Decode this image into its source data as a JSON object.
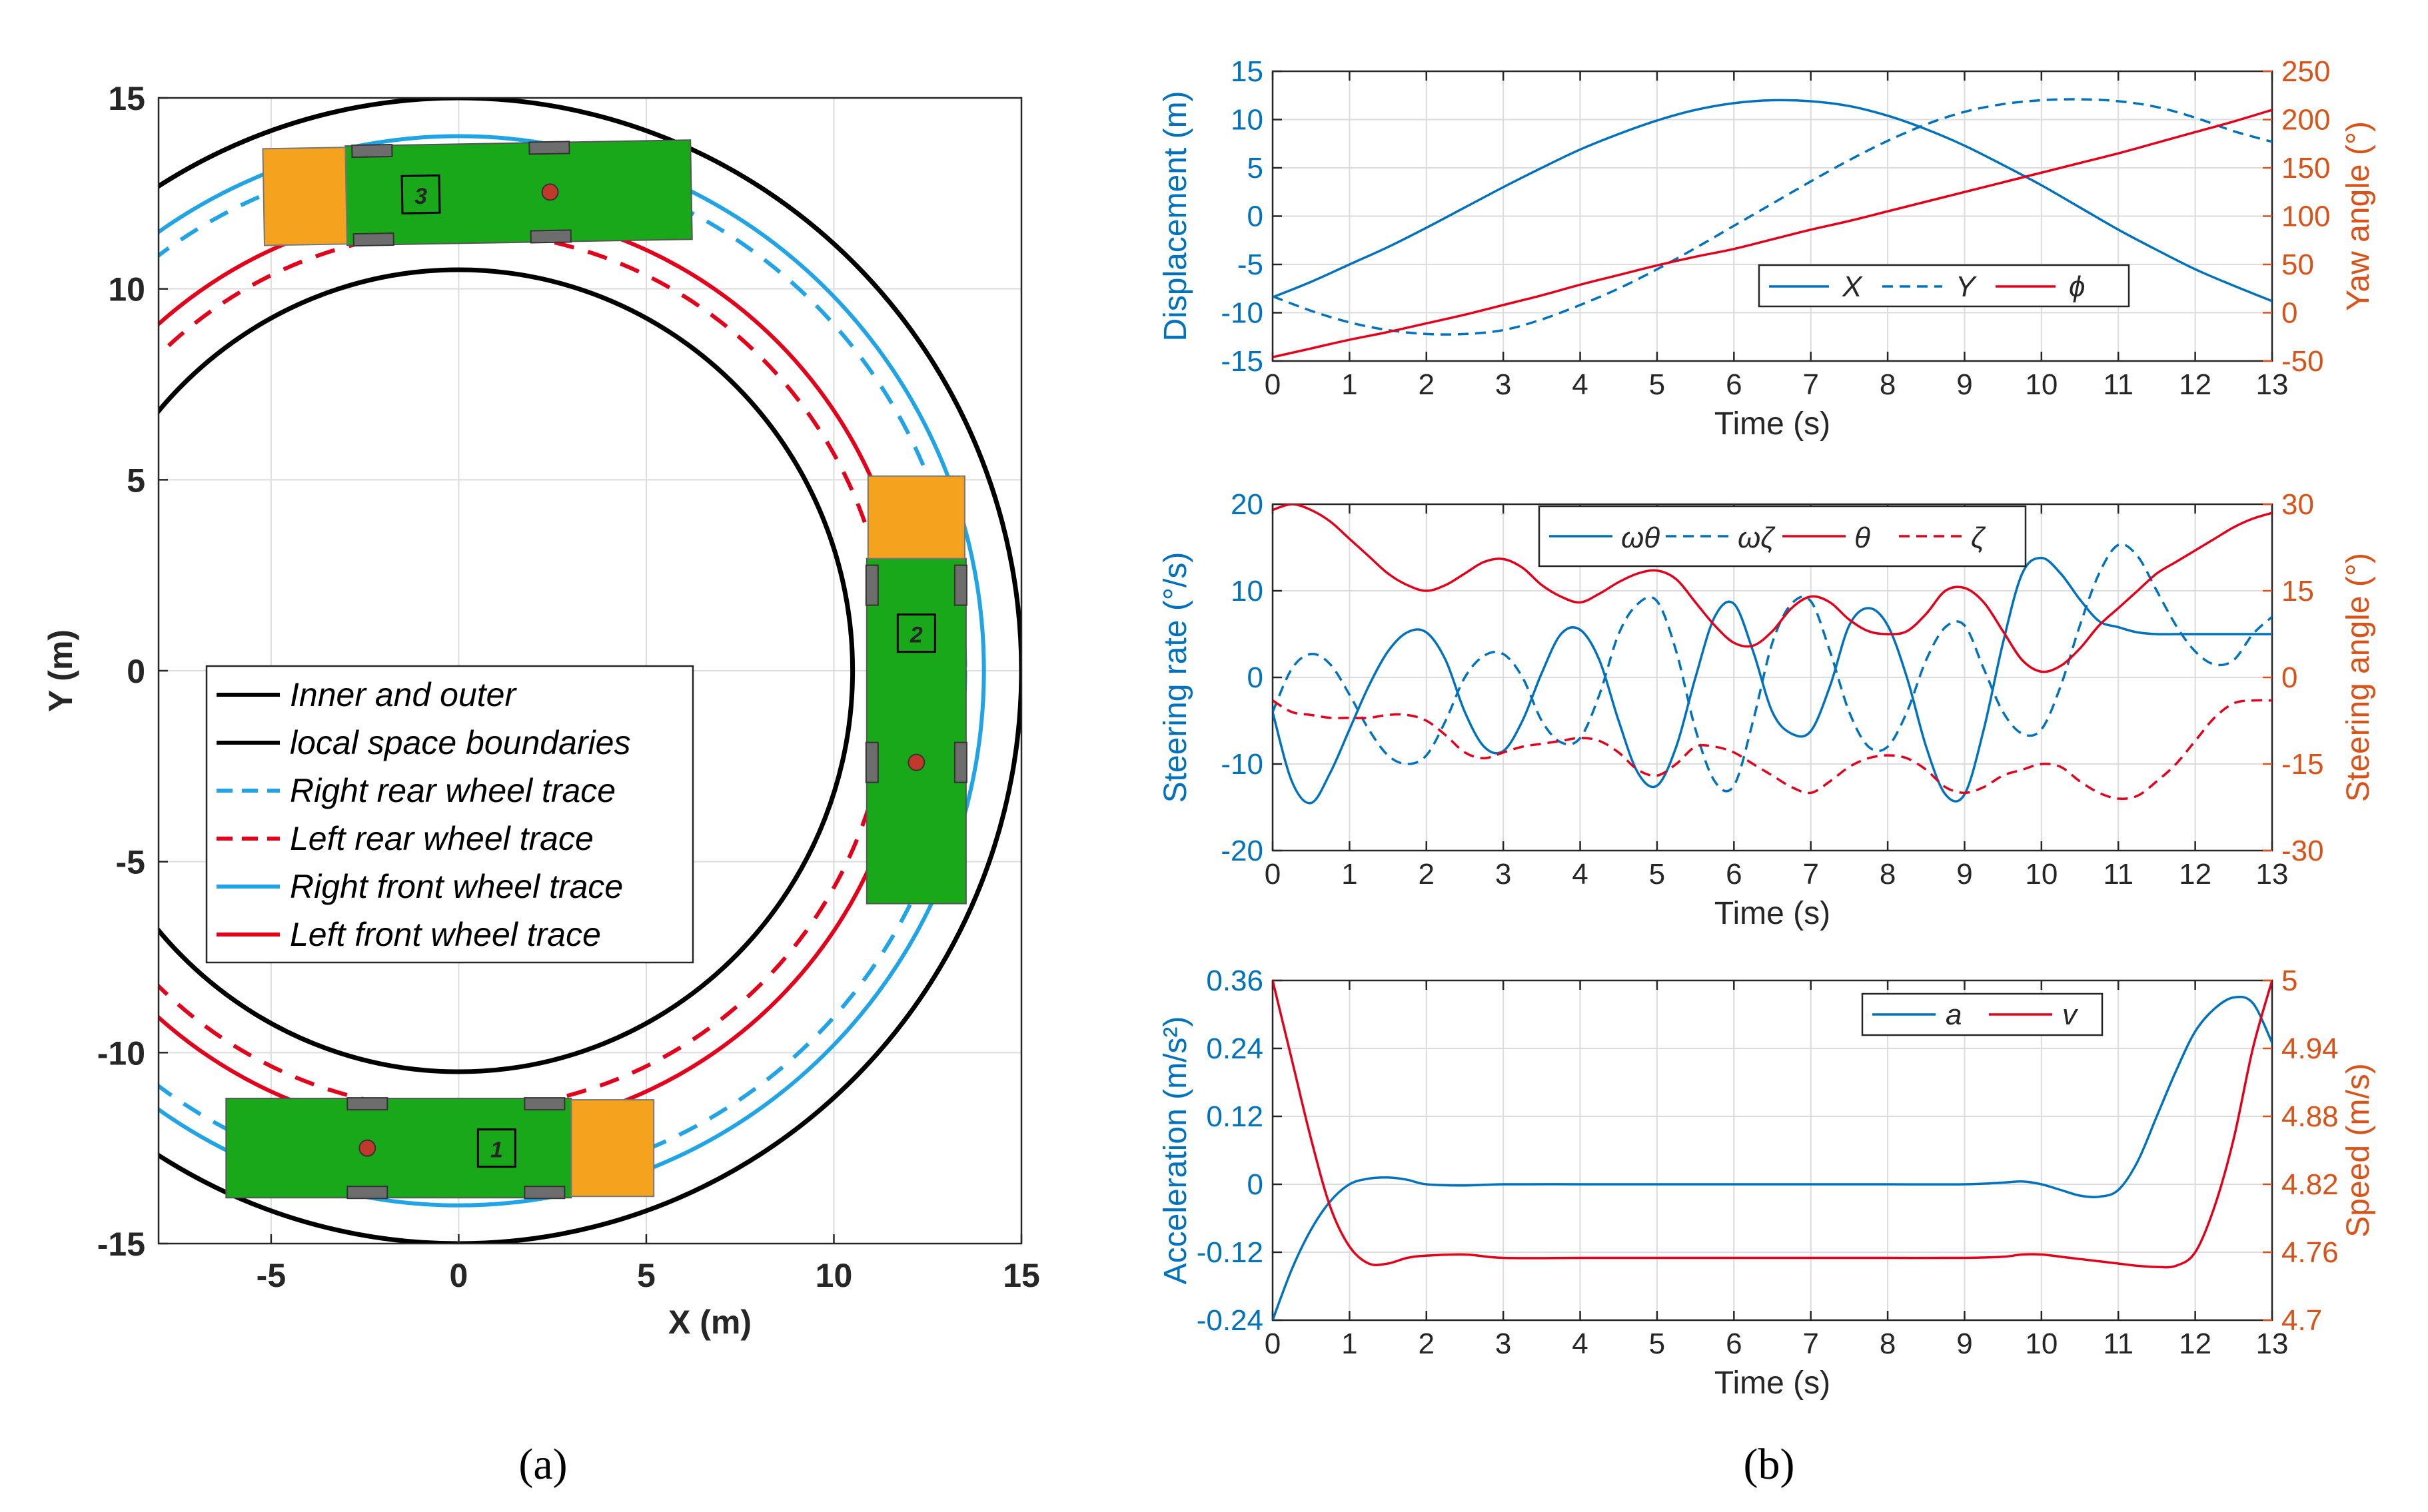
{
  "panel_labels": {
    "a": "(a)",
    "b": "(b)"
  },
  "colors": {
    "blue": "#0072BD",
    "red": "#E3001B",
    "lightblue": "#21A4E6",
    "orange": "#D95319",
    "axis_right": "#D95319",
    "green": "#19A819",
    "trailer": "#F5A21E"
  },
  "chart_data": [
    {
      "id": "traj",
      "type": "line",
      "title": "",
      "xlabel": "X (m)",
      "ylabel": "Y (m)",
      "xlim": [
        -8,
        15
      ],
      "ylim": [
        -15,
        15
      ],
      "xticks": [
        -5,
        0,
        5,
        10,
        15
      ],
      "yticks": [
        -15,
        -10,
        -5,
        0,
        5,
        10,
        15
      ],
      "grid": true,
      "center": [
        0,
        0
      ],
      "circles": [
        {
          "name": "Inner boundary",
          "radius": 10.5,
          "color": "#000000",
          "style": "solid"
        },
        {
          "name": "Outer boundary",
          "radius": 15.0,
          "color": "#000000",
          "style": "solid"
        },
        {
          "name": "Right rear wheel trace",
          "radius": 13.5,
          "color": "#21A4E6",
          "style": "dashed"
        },
        {
          "name": "Left rear wheel trace",
          "radius": 11.5,
          "color": "#E3001B",
          "style": "dashed"
        },
        {
          "name": "Right front wheel trace",
          "radius": 14.0,
          "color": "#21A4E6",
          "style": "solid"
        },
        {
          "name": "Left front wheel trace",
          "radius": 12.1,
          "color": "#E3001B",
          "style": "solid"
        }
      ],
      "vehicles": [
        {
          "number": "1",
          "cx": -0.5,
          "cy": -12.5,
          "angle_deg": 0
        },
        {
          "number": "2",
          "cx": 12.2,
          "cy": -0.5,
          "angle_deg": 90
        },
        {
          "number": "3",
          "cx": 0.5,
          "cy": 12.5,
          "angle_deg": 181
        }
      ],
      "legend": {
        "position": "center",
        "entries": [
          {
            "label": "Inner and outer",
            "color": "#000000",
            "style": "solid"
          },
          {
            "label": "local space boundaries",
            "color": "#000000",
            "style": "solid"
          },
          {
            "label": "Right rear wheel trace",
            "color": "#21A4E6",
            "style": "dashed"
          },
          {
            "label": "Left rear wheel trace",
            "color": "#E3001B",
            "style": "dashed"
          },
          {
            "label": "Right front wheel trace",
            "color": "#21A4E6",
            "style": "solid"
          },
          {
            "label": "Left front wheel trace",
            "color": "#E3001B",
            "style": "solid"
          }
        ]
      }
    },
    {
      "id": "disp",
      "type": "line",
      "xlabel": "Time (s)",
      "ylabel": "Displacement (m)",
      "ylabel_right": "Yaw angle (°)",
      "xlim": [
        0,
        13
      ],
      "ylim": [
        -15,
        15
      ],
      "ylim_right": [
        -50,
        250
      ],
      "xticks": [
        0,
        1,
        2,
        3,
        4,
        5,
        6,
        7,
        8,
        9,
        10,
        11,
        12,
        13
      ],
      "yticks": [
        -15,
        -10,
        -5,
        0,
        5,
        10,
        15
      ],
      "yticks_right": [
        -50,
        0,
        50,
        100,
        150,
        200,
        250
      ],
      "grid": true,
      "x": [
        0,
        0.5,
        1,
        1.5,
        2,
        2.5,
        3,
        3.5,
        4,
        4.5,
        5,
        5.5,
        6,
        6.5,
        7,
        7.5,
        8,
        8.5,
        9,
        9.5,
        10,
        10.5,
        11,
        11.5,
        12,
        12.5,
        13
      ],
      "series": [
        {
          "name": "X",
          "axis": "left",
          "color": "#0072BD",
          "style": "solid",
          "values": [
            -8.4,
            -6.8,
            -5.0,
            -3.2,
            -1.2,
            0.9,
            3.0,
            5.0,
            6.9,
            8.5,
            9.9,
            11.0,
            11.7,
            12.0,
            11.9,
            11.4,
            10.4,
            9.0,
            7.3,
            5.3,
            3.2,
            0.9,
            -1.4,
            -3.5,
            -5.5,
            -7.2,
            -8.8
          ]
        },
        {
          "name": "Y",
          "axis": "left",
          "color": "#0072BD",
          "style": "dashed",
          "values": [
            -8.3,
            -9.8,
            -11.0,
            -11.8,
            -12.2,
            -12.2,
            -11.8,
            -10.7,
            -9.2,
            -7.5,
            -5.5,
            -3.3,
            -1.0,
            1.3,
            3.6,
            5.8,
            7.8,
            9.5,
            10.8,
            11.6,
            12.0,
            12.1,
            11.9,
            11.3,
            10.2,
            8.8,
            7.7
          ]
        },
        {
          "name": "ϕ",
          "axis": "right",
          "color": "#E3001B",
          "style": "solid",
          "values": [
            -46,
            -37,
            -28,
            -20,
            -11,
            -2,
            8,
            18,
            29,
            39,
            49,
            58,
            66,
            76,
            86,
            95,
            105,
            115,
            125,
            135,
            145,
            155,
            165,
            176,
            187,
            198,
            210
          ]
        }
      ],
      "legend": {
        "position": "top-center",
        "entries": [
          "X",
          "Y",
          "ϕ"
        ]
      }
    },
    {
      "id": "steer",
      "type": "line",
      "xlabel": "Time (s)",
      "ylabel": "Steering rate (°/s)",
      "ylabel_right": "Steering angle (°)",
      "xlim": [
        0,
        13
      ],
      "ylim": [
        -20,
        20
      ],
      "ylim_right": [
        -30,
        30
      ],
      "xticks": [
        0,
        1,
        2,
        3,
        4,
        5,
        6,
        7,
        8,
        9,
        10,
        11,
        12,
        13
      ],
      "yticks": [
        -20,
        -10,
        0,
        10,
        20
      ],
      "yticks_right": [
        -30,
        -15,
        0,
        15,
        30
      ],
      "grid": true,
      "x": [
        0,
        0.25,
        0.5,
        0.75,
        1,
        1.25,
        1.5,
        1.75,
        2,
        2.25,
        2.5,
        2.75,
        3,
        3.25,
        3.5,
        3.75,
        4,
        4.25,
        4.5,
        4.75,
        5,
        5.25,
        5.5,
        5.75,
        6,
        6.25,
        6.5,
        6.75,
        7,
        7.25,
        7.5,
        7.75,
        8,
        8.25,
        8.5,
        8.75,
        9,
        9.25,
        9.5,
        9.75,
        10,
        10.25,
        10.5,
        10.75,
        11,
        11.25,
        11.5,
        11.75,
        12,
        12.25,
        12.5,
        12.75,
        13
      ],
      "series": [
        {
          "name": "ωθ",
          "axis": "left",
          "color": "#0072BD",
          "style": "solid",
          "values": [
            -4,
            -12,
            -14.5,
            -11,
            -6,
            -1,
            3,
            5.2,
            5.2,
            2,
            -4,
            -8,
            -8.5,
            -5,
            0.5,
            5,
            5.5,
            2,
            -5,
            -11,
            -12.5,
            -8,
            0,
            7,
            8.5,
            3,
            -4,
            -6.5,
            -6.2,
            -1,
            6,
            8,
            6,
            0,
            -8,
            -13.5,
            -13.5,
            -6,
            4,
            12,
            13.8,
            12,
            9,
            6.5,
            5.8,
            5.2,
            5,
            5,
            5,
            5,
            5,
            5,
            5
          ]
        },
        {
          "name": "ωζ",
          "axis": "left",
          "color": "#0072BD",
          "style": "dashed",
          "values": [
            -4,
            1,
            2.7,
            1.5,
            -2,
            -6,
            -9,
            -10,
            -9,
            -5,
            0,
            2.5,
            2.7,
            0,
            -5,
            -7.5,
            -7,
            -2,
            5,
            8.5,
            8.8,
            3,
            -6,
            -12,
            -12.5,
            -5,
            4,
            8.5,
            8.8,
            3,
            -4,
            -8,
            -8,
            -4,
            2,
            5.8,
            6,
            1,
            -4,
            -6.5,
            -6,
            -1,
            6,
            12,
            15.3,
            14,
            10,
            6,
            3,
            1.5,
            2,
            5,
            7
          ]
        },
        {
          "name": "θ",
          "axis": "right",
          "color": "#E3001B",
          "style": "solid",
          "values": [
            29,
            30,
            29,
            27,
            24,
            21,
            18,
            16,
            15,
            16,
            18,
            20,
            20.5,
            19,
            16,
            14,
            13,
            14.5,
            16.5,
            18,
            18.5,
            17,
            13,
            9,
            6,
            5.5,
            8,
            12,
            14,
            13,
            10,
            8,
            7.5,
            8,
            11,
            15,
            15.5,
            13,
            8,
            3,
            1,
            2,
            5,
            9,
            12,
            15,
            18,
            20,
            22,
            24,
            26,
            27.5,
            28.5
          ]
        },
        {
          "name": "ζ",
          "axis": "right",
          "color": "#E3001B",
          "style": "dashed",
          "values": [
            -4,
            -6,
            -6.5,
            -7,
            -7,
            -7,
            -6.5,
            -6.5,
            -7.5,
            -10,
            -13,
            -14,
            -13,
            -12,
            -11.5,
            -11,
            -10.5,
            -11,
            -13,
            -16,
            -17,
            -15,
            -12,
            -12,
            -13,
            -15,
            -17,
            -19,
            -20,
            -18,
            -15.5,
            -14,
            -13.5,
            -14,
            -16,
            -19,
            -20,
            -19,
            -17,
            -16,
            -15,
            -15.5,
            -18,
            -20,
            -21,
            -20.5,
            -18,
            -15,
            -11,
            -7,
            -4.5,
            -4,
            -4
          ]
        }
      ],
      "legend": {
        "position": "top-center",
        "entries": [
          "ωθ",
          "ωζ",
          "θ",
          "ζ"
        ]
      }
    },
    {
      "id": "accel",
      "type": "line",
      "xlabel": "Time (s)",
      "ylabel": "Acceleration (m/s²)",
      "ylabel_right": "Speed (m/s)",
      "xlim": [
        0,
        13
      ],
      "ylim": [
        -0.24,
        0.36
      ],
      "ylim_right": [
        4.7,
        5
      ],
      "xticks": [
        0,
        1,
        2,
        3,
        4,
        5,
        6,
        7,
        8,
        9,
        10,
        11,
        12,
        13
      ],
      "yticks": [
        -0.24,
        -0.12,
        0,
        0.12,
        0.24,
        0.36
      ],
      "ytick_labels": [
        "-0.24",
        "-0.12",
        "0",
        "0.12",
        "0.24",
        "0.36"
      ],
      "yticks_right": [
        4.7,
        4.76,
        4.82,
        4.88,
        4.94,
        5
      ],
      "ytick_labels_right": [
        "4.7",
        "4.76",
        "4.82",
        "4.88",
        "4.94",
        "5"
      ],
      "grid": true,
      "x": [
        0,
        0.25,
        0.5,
        0.75,
        1,
        1.25,
        1.5,
        1.75,
        2,
        2.5,
        3,
        4,
        5,
        6,
        7,
        8,
        9,
        9.5,
        9.75,
        10,
        10.25,
        10.5,
        10.75,
        11,
        11.25,
        11.5,
        11.75,
        12,
        12.25,
        12.5,
        12.75,
        13
      ],
      "series": [
        {
          "name": "a",
          "axis": "left",
          "color": "#0072BD",
          "style": "solid",
          "values": [
            -0.24,
            -0.15,
            -0.08,
            -0.03,
            0.0,
            0.01,
            0.012,
            0.008,
            0.0,
            -0.002,
            0.0,
            0.0,
            0.0,
            0.0,
            0.0,
            0.0,
            0.0,
            0.003,
            0.005,
            0.0,
            -0.01,
            -0.02,
            -0.022,
            -0.01,
            0.04,
            0.12,
            0.2,
            0.27,
            0.31,
            0.33,
            0.32,
            0.25
          ]
        },
        {
          "name": "v",
          "axis": "right",
          "color": "#E3001B",
          "style": "solid",
          "values": [
            5.0,
            4.93,
            4.86,
            4.8,
            4.765,
            4.75,
            4.75,
            4.755,
            4.757,
            4.758,
            4.755,
            4.755,
            4.755,
            4.755,
            4.755,
            4.755,
            4.755,
            4.756,
            4.758,
            4.758,
            4.756,
            4.754,
            4.752,
            4.75,
            4.748,
            4.747,
            4.748,
            4.76,
            4.8,
            4.86,
            4.94,
            5.0
          ]
        }
      ],
      "legend": {
        "position": "top-right",
        "entries": [
          "a",
          "v"
        ]
      }
    }
  ]
}
